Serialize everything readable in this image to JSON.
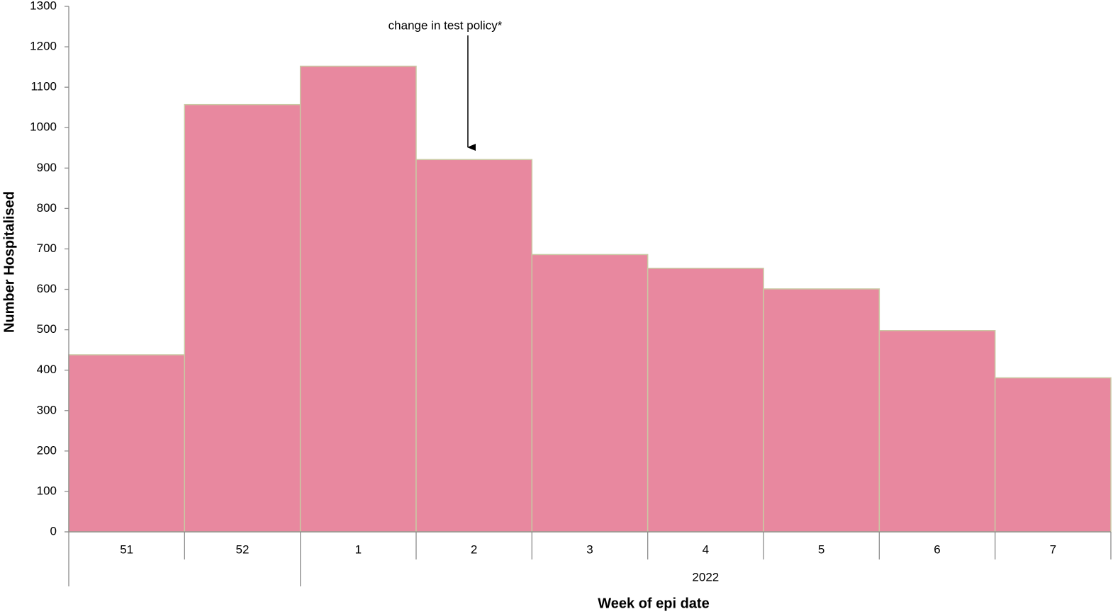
{
  "chart_data": {
    "type": "bar",
    "y_label": "Number Hospitalised",
    "x_label": "Week of epi date",
    "categories": [
      "51",
      "52",
      "1",
      "2",
      "3",
      "4",
      "5",
      "6",
      "7"
    ],
    "category_groups": [
      null,
      null,
      "2022",
      "2022",
      "2022",
      "2022",
      "2022",
      "2022",
      "2022"
    ],
    "values": [
      438,
      1057,
      1152,
      921,
      686,
      652,
      601,
      498,
      381
    ],
    "color": "#e8889f",
    "edge_color": "#c9c9a3",
    "ylim": [
      0,
      1300
    ],
    "yticks": [
      0,
      100,
      200,
      300,
      400,
      500,
      600,
      700,
      800,
      900,
      1000,
      1100,
      1200,
      1300
    ],
    "grid": false,
    "annotation": "change in test policy*"
  }
}
